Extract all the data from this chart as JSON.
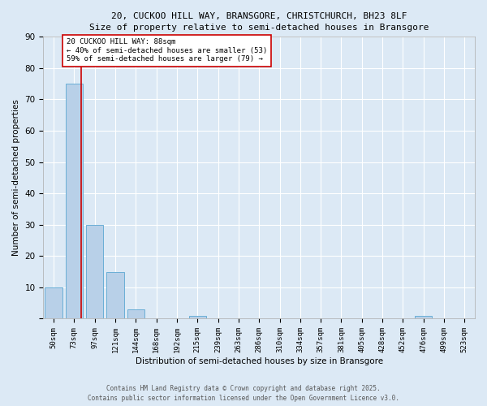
{
  "title_line1": "20, CUCKOO HILL WAY, BRANSGORE, CHRISTCHURCH, BH23 8LF",
  "title_line2": "Size of property relative to semi-detached houses in Bransgore",
  "categories": [
    "50sqm",
    "73sqm",
    "97sqm",
    "121sqm",
    "144sqm",
    "168sqm",
    "192sqm",
    "215sqm",
    "239sqm",
    "263sqm",
    "286sqm",
    "310sqm",
    "334sqm",
    "357sqm",
    "381sqm",
    "405sqm",
    "428sqm",
    "452sqm",
    "476sqm",
    "499sqm",
    "523sqm"
  ],
  "values": [
    10,
    75,
    30,
    15,
    3,
    0,
    0,
    1,
    0,
    0,
    0,
    0,
    0,
    0,
    0,
    0,
    0,
    0,
    1,
    0,
    0
  ],
  "bar_color": "#b8d0e8",
  "bar_edge_color": "#6aaed6",
  "redline_index": 1,
  "annotation_text": "20 CUCKOO HILL WAY: 88sqm\n← 40% of semi-detached houses are smaller (53)\n59% of semi-detached houses are larger (79) →",
  "xlabel": "Distribution of semi-detached houses by size in Bransgore",
  "ylabel": "Number of semi-detached properties",
  "ylim": [
    0,
    90
  ],
  "yticks": [
    0,
    10,
    20,
    30,
    40,
    50,
    60,
    70,
    80,
    90
  ],
  "footer_line1": "Contains HM Land Registry data © Crown copyright and database right 2025.",
  "footer_line2": "Contains public sector information licensed under the Open Government Licence v3.0.",
  "bg_color": "#dce9f5",
  "plot_bg_color": "#dce9f5",
  "grid_color": "#ffffff",
  "annotation_box_color": "#ffffff",
  "annotation_border_color": "#cc0000",
  "redline_color": "#cc0000"
}
